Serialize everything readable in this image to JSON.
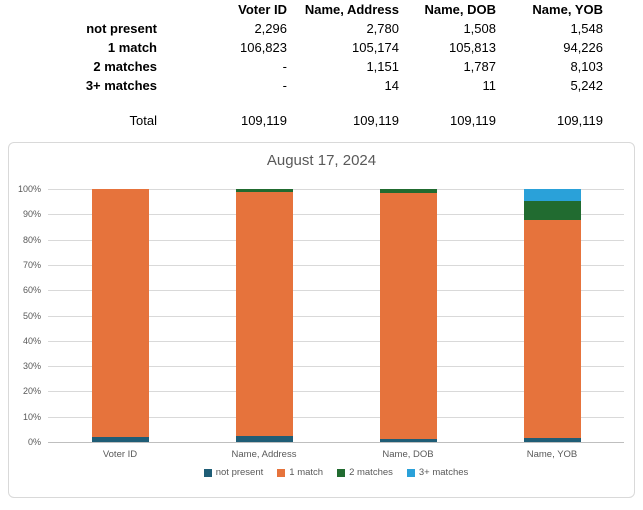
{
  "table": {
    "column_headers": [
      "Voter ID",
      "Name, Address",
      "Name, DOB",
      "Name, YOB"
    ],
    "rows": [
      {
        "label": "not present",
        "values": [
          "2,296",
          "2,780",
          "1,508",
          "1,548"
        ]
      },
      {
        "label": "1 match",
        "values": [
          "106,823",
          "105,174",
          "105,813",
          "94,226"
        ]
      },
      {
        "label": "2 matches",
        "values": [
          "-",
          "1,151",
          "1,787",
          "8,103"
        ]
      },
      {
        "label": "3+ matches",
        "values": [
          "-",
          "14",
          "11",
          "5,242"
        ]
      }
    ],
    "total_row": {
      "label": "Total",
      "values": [
        "109,119",
        "109,119",
        "109,119",
        "109,119"
      ]
    }
  },
  "chart_data": {
    "type": "bar",
    "subtype": "stacked-100-percent",
    "title": "August 17, 2024",
    "title_color": "#595959",
    "categories": [
      "Voter ID",
      "Name, Address",
      "Name, DOB",
      "Name, YOB"
    ],
    "series": [
      {
        "name": "not present",
        "color": "#1F5D76",
        "values": [
          2296,
          2780,
          1508,
          1548
        ]
      },
      {
        "name": "1 match",
        "color": "#E6733C",
        "values": [
          106823,
          105174,
          105813,
          94226
        ]
      },
      {
        "name": "2 matches",
        "color": "#216B30",
        "values": [
          0,
          1151,
          1787,
          8103
        ]
      },
      {
        "name": "3+ matches",
        "color": "#2AA1D9",
        "values": [
          0,
          14,
          11,
          5242
        ]
      }
    ],
    "category_totals": [
      109119,
      109119,
      109119,
      109119
    ],
    "xlabel": "",
    "ylabel": "",
    "ylim": [
      0,
      100
    ],
    "y_ticks": [
      "0%",
      "10%",
      "20%",
      "30%",
      "40%",
      "50%",
      "60%",
      "70%",
      "80%",
      "90%",
      "100%"
    ],
    "grid": true,
    "gridline_color": "#D9D9D9",
    "axis_label_color": "#595959",
    "legend_position": "bottom",
    "legend": [
      "not present",
      "1 match",
      "2 matches",
      "3+ matches"
    ]
  }
}
